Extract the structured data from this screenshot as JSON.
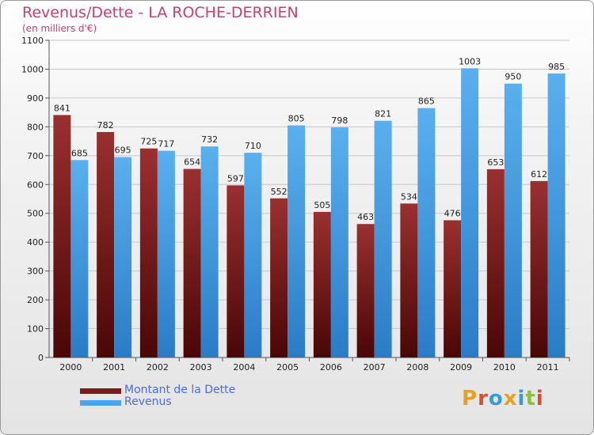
{
  "header": {
    "title": "Revenus/Dette - LA ROCHE-DERRIEN",
    "subtitle": "(en milliers d'€)"
  },
  "legend": {
    "items": [
      {
        "label": "Montant de la Dette",
        "color": "#7a1a1a"
      },
      {
        "label": "Revenus",
        "color": "#4da3e8"
      }
    ]
  },
  "logo": {
    "text": "Proxiti",
    "letter_colors": [
      "#e8a020",
      "#e04a2a",
      "#3a9ad8",
      "#e8a020",
      "#3a9ad8",
      "#8ac03a",
      "#e04a2a"
    ]
  },
  "chart_data": {
    "type": "bar",
    "title": "Revenus/Dette - LA ROCHE-DERRIEN",
    "subtitle": "(en milliers d'€)",
    "xlabel": "",
    "ylabel": "",
    "categories": [
      "2000",
      "2001",
      "2002",
      "2003",
      "2004",
      "2005",
      "2006",
      "2007",
      "2008",
      "2009",
      "2010",
      "2011"
    ],
    "series": [
      {
        "name": "Montant de la Dette",
        "color": "#7a1a1a",
        "values": [
          841,
          782,
          725,
          654,
          597,
          552,
          505,
          463,
          534,
          476,
          653,
          612
        ]
      },
      {
        "name": "Revenus",
        "color": "#4da3e8",
        "values": [
          685,
          695,
          717,
          732,
          710,
          805,
          798,
          821,
          865,
          1003,
          950,
          985
        ]
      }
    ],
    "ylim": [
      0,
      1100
    ],
    "yticks": [
      0,
      100,
      200,
      300,
      400,
      500,
      600,
      700,
      800,
      900,
      1000,
      1100
    ],
    "grid": true,
    "legend_position": "bottom-left"
  }
}
